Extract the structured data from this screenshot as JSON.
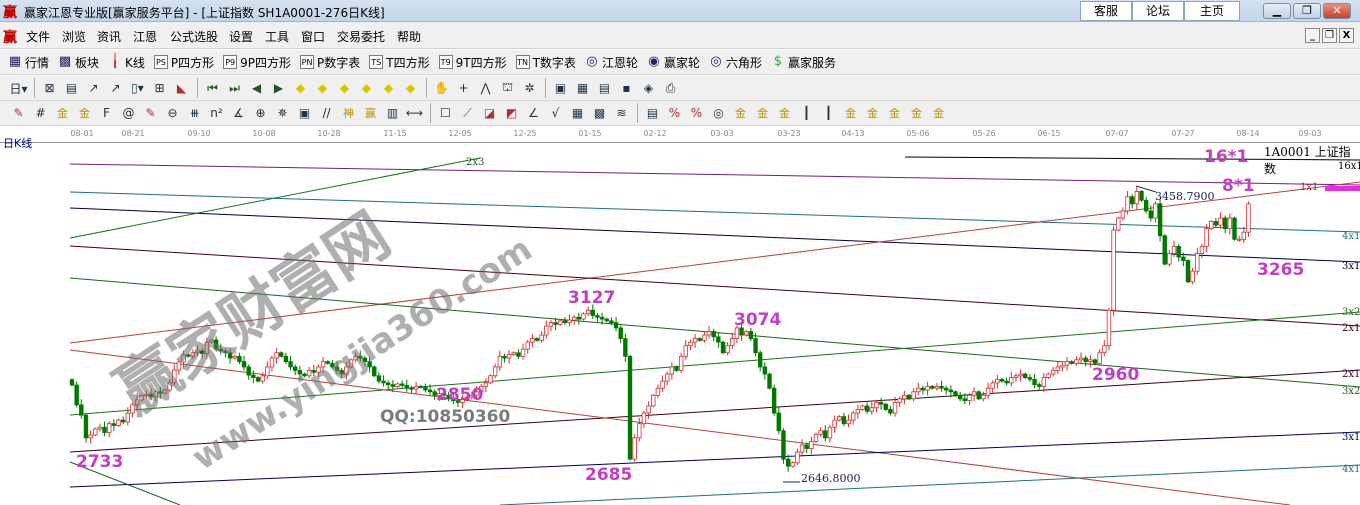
{
  "titlebar": {
    "logo": "赢",
    "title": "赢家江恩专业版[赢家服务平台] - [上证指数  SH1A0001-276日K线]",
    "links": [
      "客服",
      "论坛",
      "主页"
    ],
    "controls": [
      "minimize",
      "restore",
      "close"
    ]
  },
  "menubar": {
    "logo": "赢",
    "items": [
      "文件",
      "浏览",
      "资讯",
      "江恩",
      "公式选股",
      "设置",
      "工具",
      "窗口",
      "交易委托",
      "帮助"
    ]
  },
  "toolbar1": [
    {
      "icon": "grid-icon",
      "glyph": "▦",
      "label": "行情"
    },
    {
      "icon": "blocks-icon",
      "glyph": "▩",
      "label": "板块"
    },
    {
      "icon": "candles-icon",
      "glyph": "╽",
      "label": "K线"
    },
    {
      "icon": "ps-icon",
      "glyph": "PS",
      "label": "P四方形"
    },
    {
      "icon": "p9-icon",
      "glyph": "P9",
      "label": "9P四方形"
    },
    {
      "icon": "pn-icon",
      "glyph": "PN",
      "label": "P数字表"
    },
    {
      "icon": "ts-icon",
      "glyph": "TS",
      "label": "T四方形"
    },
    {
      "icon": "t9-icon",
      "glyph": "T9",
      "label": "9T四方形"
    },
    {
      "icon": "tn-icon",
      "glyph": "TN",
      "label": "T数字表"
    },
    {
      "icon": "gann-wheel-icon",
      "glyph": "◎",
      "label": "江恩轮"
    },
    {
      "icon": "yingjia-wheel-icon",
      "glyph": "◉",
      "label": "赢家轮"
    },
    {
      "icon": "hexagon-icon",
      "glyph": "◎",
      "label": "六角形"
    },
    {
      "icon": "dollar-icon",
      "glyph": "$",
      "label": "赢家服务"
    }
  ],
  "toolbar2": [
    {
      "icon": "period-day-icon",
      "glyph": "日▾"
    },
    {
      "icon": "sep"
    },
    {
      "icon": "chart-a-icon",
      "glyph": "⊠"
    },
    {
      "icon": "doc-icon",
      "glyph": "▤"
    },
    {
      "icon": "k3-icon",
      "glyph": "↗"
    },
    {
      "icon": "k9-icon",
      "glyph": "↗"
    },
    {
      "icon": "bar-icon",
      "glyph": "▯▾"
    },
    {
      "icon": "pattern-icon",
      "glyph": "⊞"
    },
    {
      "icon": "color-fan-icon",
      "glyph": "◣"
    },
    {
      "icon": "sep"
    },
    {
      "icon": "first-icon",
      "glyph": "⏮"
    },
    {
      "icon": "last-icon",
      "glyph": "⏭"
    },
    {
      "icon": "left-icon",
      "glyph": "◀"
    },
    {
      "icon": "right-icon",
      "glyph": "▶"
    },
    {
      "icon": "diamond-left-icon",
      "glyph": "◆"
    },
    {
      "icon": "diamond-right-icon",
      "glyph": "◆"
    },
    {
      "icon": "diamond-expand-icon",
      "glyph": "◆"
    },
    {
      "icon": "diamond-shrink-icon",
      "glyph": "◆"
    },
    {
      "icon": "diamond-up-icon",
      "glyph": "◆"
    },
    {
      "icon": "diamond-down-icon",
      "glyph": "◆"
    },
    {
      "icon": "sep"
    },
    {
      "icon": "hand-icon",
      "glyph": "✋"
    },
    {
      "icon": "crosshair-icon",
      "glyph": "+"
    },
    {
      "icon": "line-icon",
      "glyph": "⋀"
    },
    {
      "icon": "shape-icon",
      "glyph": "⛫"
    },
    {
      "icon": "tools-icon",
      "glyph": "✲"
    },
    {
      "icon": "sep"
    },
    {
      "icon": "calendar-icon",
      "glyph": "▣"
    },
    {
      "icon": "calculator-icon",
      "glyph": "▦"
    },
    {
      "icon": "notes-icon",
      "glyph": "▤"
    },
    {
      "icon": "save-icon",
      "glyph": "▪"
    },
    {
      "icon": "export-icon",
      "glyph": "◈"
    },
    {
      "icon": "print-icon",
      "glyph": "⎙"
    }
  ],
  "toolbar3": [
    {
      "icon": "pen-icon",
      "glyph": "✎"
    },
    {
      "icon": "hash-icon",
      "glyph": "#"
    },
    {
      "icon": "gold-1-icon",
      "glyph": "金"
    },
    {
      "icon": "gold-2-icon",
      "glyph": "金"
    },
    {
      "icon": "fib-icon",
      "glyph": "F"
    },
    {
      "icon": "spiral-icon",
      "glyph": "@"
    },
    {
      "icon": "pen2-icon",
      "glyph": "✎"
    },
    {
      "icon": "circle-icon",
      "glyph": "⊖"
    },
    {
      "icon": "lines-icon",
      "glyph": "⧻"
    },
    {
      "icon": "n2-icon",
      "glyph": "n²"
    },
    {
      "icon": "angle-icon",
      "glyph": "∡"
    },
    {
      "icon": "target-icon",
      "glyph": "⊕"
    },
    {
      "icon": "web-icon",
      "glyph": "✵"
    },
    {
      "icon": "square-web-icon",
      "glyph": "▣"
    },
    {
      "icon": "slash-icon",
      "glyph": "//"
    },
    {
      "icon": "shen-icon",
      "glyph": "神"
    },
    {
      "icon": "ying-icon",
      "glyph": "赢"
    },
    {
      "icon": "ruler-icon",
      "glyph": "▥"
    },
    {
      "icon": "range-icon",
      "glyph": "⟷"
    },
    {
      "icon": "sep"
    },
    {
      "icon": "box-icon",
      "glyph": "☐"
    },
    {
      "icon": "fan-icon",
      "glyph": "⟋"
    },
    {
      "icon": "fan-box-icon",
      "glyph": "◪"
    },
    {
      "icon": "fan-box2-icon",
      "glyph": "◩"
    },
    {
      "icon": "angle2-icon",
      "glyph": "∠"
    },
    {
      "icon": "v-icon",
      "glyph": "√"
    },
    {
      "icon": "grid2-icon",
      "glyph": "▦"
    },
    {
      "icon": "grid3-icon",
      "glyph": "▩"
    },
    {
      "icon": "hatch-icon",
      "glyph": "≋"
    },
    {
      "icon": "sep"
    },
    {
      "icon": "table-icon",
      "glyph": "▤"
    },
    {
      "icon": "percent-fan-icon",
      "glyph": "%"
    },
    {
      "icon": "percent-icon",
      "glyph": "%"
    },
    {
      "icon": "ring-icon",
      "glyph": "◎"
    },
    {
      "icon": "gold3-icon",
      "glyph": "金"
    },
    {
      "icon": "gold4-icon",
      "glyph": "金"
    },
    {
      "icon": "gold5-icon",
      "glyph": "金"
    },
    {
      "icon": "bars-icon",
      "glyph": "┃"
    },
    {
      "icon": "bars2-icon",
      "glyph": "┃"
    },
    {
      "icon": "gold6-icon",
      "glyph": "金"
    },
    {
      "icon": "gold7-icon",
      "glyph": "金"
    },
    {
      "icon": "gold8-icon",
      "glyph": "金"
    },
    {
      "icon": "gold9-icon",
      "glyph": "金"
    },
    {
      "icon": "gold10-icon",
      "glyph": "金"
    }
  ],
  "chart_header": {
    "period_label": "日K线",
    "security": "1A0001  上证指数"
  },
  "watermark": {
    "brand": "赢家财富网",
    "url": "www.yingjia360.com",
    "qq": "QQ:10850360"
  },
  "chart_data": {
    "type": "candlestick",
    "x_tick_labels": [
      "08-01",
      "08-21",
      "09-10",
      "10-08",
      "10-28",
      "11-15",
      "12-05",
      "12-25",
      "01-15",
      "02-12",
      "03-03",
      "03-23",
      "04-13",
      "05-06",
      "05-26",
      "06-15",
      "07-07",
      "07-27",
      "08-14",
      "09-03"
    ],
    "close": [
      2909,
      2853,
      2824,
      2760,
      2768,
      2785,
      2790,
      2775,
      2800,
      2795,
      2810,
      2805,
      2830,
      2853,
      2867,
      2880,
      2883,
      2876,
      2890,
      2886,
      2895,
      2915,
      2951,
      2974,
      2994,
      2990,
      3000,
      3005,
      2998,
      3030,
      3036,
      3010,
      3005,
      3000,
      2985,
      2990,
      2975,
      2960,
      2937,
      2930,
      2920,
      2935,
      2960,
      2985,
      3000,
      2990,
      2975,
      2960,
      2950,
      2940,
      2935,
      2950,
      2945,
      2960,
      2975,
      2970,
      2960,
      2950,
      2940,
      2960,
      2980,
      2990,
      2985,
      2975,
      2960,
      2935,
      2920,
      2915,
      2910,
      2905,
      2912,
      2908,
      2900,
      2898,
      2905,
      2903,
      2895,
      2890,
      2880,
      2885,
      2880,
      2870,
      2865,
      2860,
      2868,
      2875,
      2880,
      2890,
      2905,
      2915,
      2935,
      2960,
      2990,
      2985,
      2995,
      3000,
      2990,
      3010,
      3030,
      3040,
      3035,
      3050,
      3075,
      3085,
      3080,
      3090,
      3085,
      3092,
      3100,
      3095,
      3110,
      3120,
      3105,
      3100,
      3095,
      3090,
      3085,
      3070,
      3040,
      2990,
      2700,
      2760,
      2800,
      2830,
      2850,
      2880,
      2900,
      2920,
      2940,
      2960,
      2950,
      2990,
      3020,
      3030,
      3040,
      3035,
      3050,
      3060,
      3045,
      3030,
      3000,
      3020,
      3040,
      3070,
      3050,
      3060,
      3040,
      3000,
      2960,
      2940,
      2900,
      2830,
      2780,
      2700,
      2680,
      2690,
      2720,
      2740,
      2730,
      2750,
      2770,
      2780,
      2760,
      2790,
      2810,
      2820,
      2800,
      2810,
      2830,
      2840,
      2850,
      2835,
      2845,
      2860,
      2855,
      2840,
      2830,
      2860,
      2870,
      2880,
      2870,
      2890,
      2900,
      2895,
      2905,
      2900,
      2905,
      2900,
      2895,
      2890,
      2880,
      2870,
      2865,
      2880,
      2890,
      2870,
      2880,
      2900,
      2915,
      2925,
      2920,
      2915,
      2930,
      2935,
      2940,
      2930,
      2925,
      2910,
      2905,
      2930,
      2940,
      2950,
      2960,
      2965,
      2975,
      2970,
      2980,
      2985,
      2975,
      2980,
      2970,
      3000,
      3020,
      3120,
      3346,
      3380,
      3400,
      3440,
      3420,
      3455,
      3430,
      3400,
      3380,
      3420,
      3330,
      3250,
      3280,
      3300,
      3270,
      3260,
      3200,
      3230,
      3280,
      3300,
      3350,
      3370,
      3360,
      3380,
      3350,
      3380,
      3320,
      3320,
      3340,
      3420
    ],
    "price_labels": {
      "high": "3458.7900",
      "low": "2646.8000"
    },
    "annotations": [
      "2733",
      "3127",
      "2850",
      "2685",
      "3074",
      "2960",
      "3265",
      "16*1",
      "8*1"
    ],
    "gann_line_labels": [
      "16x1",
      "1x1",
      "4x1",
      "3x1",
      "3x2",
      "2x1",
      "2x1",
      "3x2",
      "3x1",
      "4x1",
      "2x3"
    ],
    "colors": {
      "up": "#d03030",
      "down": "#007800",
      "annotation": "#c23fc2"
    }
  }
}
